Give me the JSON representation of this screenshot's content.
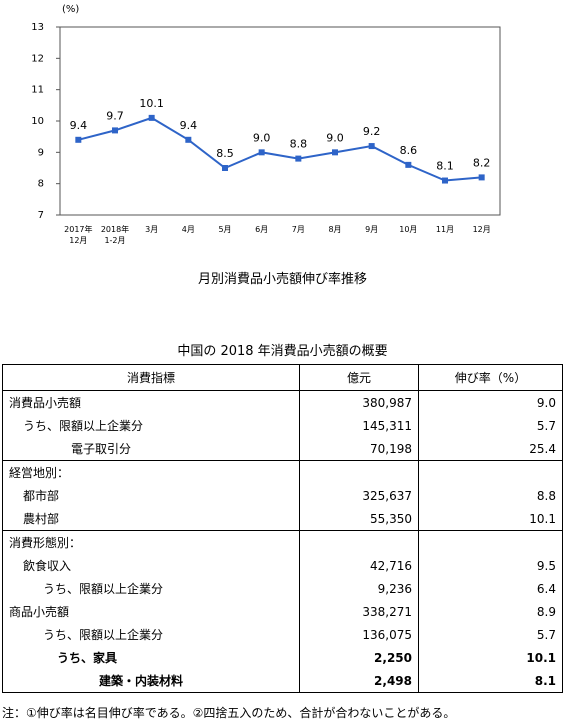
{
  "chart_data": {
    "type": "line",
    "title": "月別消費品小売額伸び率推移",
    "y_unit": "(%)",
    "categories": [
      "2017年\n12月",
      "2018年\n1-2月",
      "3月",
      "4月",
      "5月",
      "6月",
      "7月",
      "8月",
      "9月",
      "10月",
      "11月",
      "12月"
    ],
    "values": [
      9.4,
      9.7,
      10.1,
      9.4,
      8.5,
      9.0,
      8.8,
      9.0,
      9.2,
      8.6,
      8.1,
      8.2
    ],
    "value_labels": [
      "9.4",
      "9.7",
      "10.1",
      "9.4",
      "8.5",
      "9.0",
      "8.8",
      "9.0",
      "9.2",
      "8.6",
      "8.1",
      "8.2"
    ],
    "color": "#2e64c8",
    "ylim": [
      7,
      13
    ],
    "yticks": [
      7,
      8,
      9,
      10,
      11,
      12,
      13
    ]
  },
  "table": {
    "title": "中国の 2018 年消費品小売額の概要",
    "header": [
      "消費指標",
      "億元",
      "伸び率（%）"
    ],
    "rows": [
      [
        "消費品小売額",
        "380,987",
        "9.0"
      ],
      [
        "うち、限額以上企業分",
        "145,311",
        "5.7"
      ],
      [
        "電子取引分",
        "70,198",
        "25.4"
      ],
      [
        "経営地別：",
        "",
        ""
      ],
      [
        "都市部",
        "325,637",
        "8.8"
      ],
      [
        "農村部",
        "55,350",
        "10.1"
      ],
      [
        "消費形態別：",
        "",
        ""
      ],
      [
        "飲食収入",
        "42,716",
        "9.5"
      ],
      [
        "うち、限額以上企業分",
        "9,236",
        "6.4"
      ],
      [
        "商品小売額",
        "338,271",
        "8.9"
      ],
      [
        "うち、限額以上企業分",
        "136,075",
        "5.7"
      ],
      [
        "うち、家具",
        "2,250",
        "10.1"
      ],
      [
        "建築・内装材料",
        "2,498",
        "8.1"
      ]
    ],
    "note": "注：①伸び率は名目伸び率である。②四捨五入のため、合計が合わないことがある。"
  }
}
